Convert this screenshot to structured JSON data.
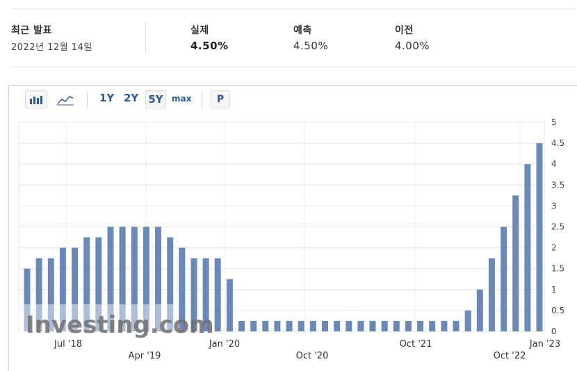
{
  "header": {
    "latest_label": "최근 발표",
    "latest_date": "2022년 12월 14일",
    "actual_label": "실제",
    "actual_value": "4.50%",
    "forecast_label": "예측",
    "forecast_value": "4.50%",
    "previous_label": "이전",
    "previous_value": "4.00%"
  },
  "toolbar": {
    "bar_icon": "bar-chart-icon",
    "line_icon": "line-chart-icon",
    "range_1y": "1Y",
    "range_2y": "2Y",
    "range_5y": "5Y",
    "range_max": "max",
    "p_button": "P",
    "selected_range": "5Y"
  },
  "watermark": {
    "text": "Investing.com"
  },
  "chart_data": {
    "type": "bar",
    "values": [
      1.5,
      1.75,
      1.75,
      2.0,
      2.0,
      2.25,
      2.25,
      2.5,
      2.5,
      2.5,
      2.5,
      2.5,
      2.25,
      2.0,
      1.75,
      1.75,
      1.75,
      1.25,
      0.25,
      0.25,
      0.25,
      0.25,
      0.25,
      0.25,
      0.25,
      0.25,
      0.25,
      0.25,
      0.25,
      0.25,
      0.25,
      0.25,
      0.25,
      0.25,
      0.25,
      0.25,
      0.25,
      0.5,
      1.0,
      1.75,
      2.5,
      3.25,
      4.0,
      4.5
    ],
    "x_labels_row1": [
      "Jul '18",
      "Jan '20",
      "Oct '21",
      "Jan '23"
    ],
    "x_labels_row2": [
      "Apr '19",
      "Oct '20",
      "Oct '22"
    ],
    "y_ticks": [
      "0",
      "0.5",
      "1",
      "1.5",
      "2",
      "2.5",
      "3",
      "3.5",
      "4",
      "4.5",
      "5"
    ],
    "ylim": [
      0,
      5
    ],
    "grid": true,
    "bar_color": "#6a89b6"
  }
}
